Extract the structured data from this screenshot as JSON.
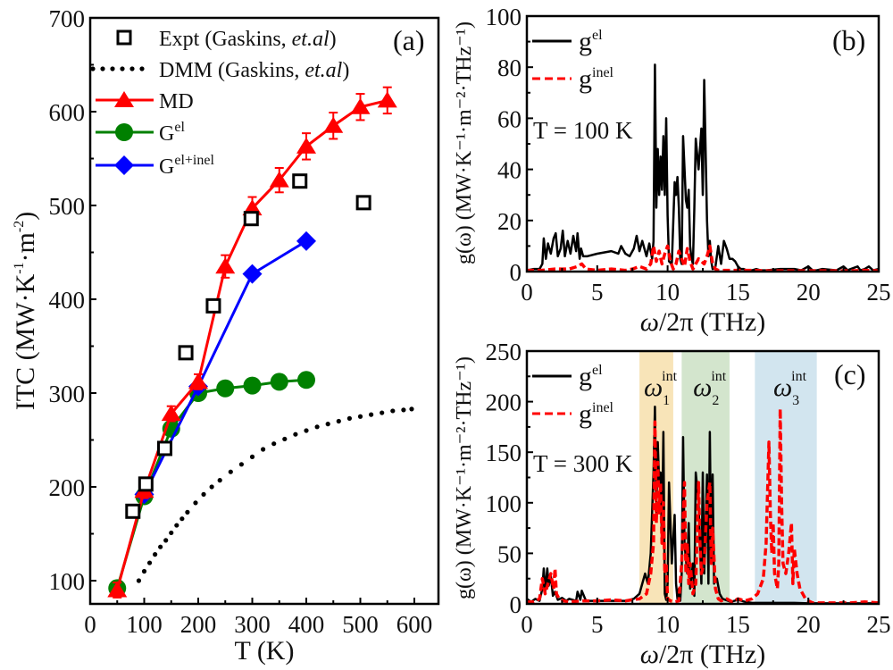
{
  "chart_data": [
    {
      "id": "a",
      "type": "line",
      "panel_label": "(a)",
      "xlabel": "T (K)",
      "ylabel": "ITC (MW·K⁻¹·m⁻²)",
      "ylabel_parts": {
        "base": "ITC (MW·K",
        "sup1": "-1",
        "mid": "·m",
        "sup2": "-2",
        "end": ")"
      },
      "xlim": [
        0,
        650
      ],
      "ylim": [
        75,
        700
      ],
      "xticks": [
        0,
        100,
        200,
        300,
        400,
        500,
        600
      ],
      "yticks": [
        100,
        200,
        300,
        400,
        500,
        600,
        700
      ],
      "legend_position": "top-left",
      "series": [
        {
          "name": "Expt (Gaskins, et.al)",
          "label_base": "Expt (Gaskins, ",
          "label_italic": "et.al",
          "label_end": ")",
          "style": "open-square",
          "color": "#000000",
          "x": [
            79,
            103,
            138,
            177,
            228,
            298,
            388,
            506
          ],
          "y": [
            174,
            203,
            241,
            343,
            393,
            486,
            526,
            503
          ]
        },
        {
          "name": "DMM (Gaskins, et.al)",
          "label_base": "DMM (Gaskins, ",
          "label_italic": "et.al",
          "label_end": ")",
          "style": "dotted",
          "color": "#000000",
          "x": [
            90,
            100,
            110,
            120,
            130,
            140,
            150,
            160,
            170,
            180,
            195,
            210,
            225,
            240,
            260,
            280,
            300,
            320,
            340,
            360,
            380,
            400,
            420,
            440,
            460,
            480,
            500,
            520,
            540,
            560,
            580,
            595
          ],
          "y": [
            100,
            110,
            119,
            128,
            136,
            143,
            151,
            159,
            166,
            173,
            183,
            192,
            200,
            207,
            216,
            224,
            232,
            240,
            246,
            251,
            256,
            260,
            264,
            267,
            270,
            273,
            275,
            277,
            279,
            281,
            282,
            283
          ]
        },
        {
          "name": "MD",
          "style": "triangle-line",
          "color": "#ff0000",
          "x": [
            50,
            100,
            150,
            200,
            250,
            300,
            350,
            400,
            450,
            500,
            550
          ],
          "y": [
            90,
            196,
            278,
            312,
            435,
            497,
            527,
            563,
            585,
            605,
            612
          ],
          "err": [
            8,
            8,
            8,
            8,
            12,
            12,
            13,
            14,
            14,
            14,
            14
          ]
        },
        {
          "name": "Gel",
          "label_base": "G",
          "label_sup": "el",
          "style": "circle-line",
          "color": "#008000",
          "x": [
            50,
            100,
            150,
            200,
            250,
            300,
            350,
            400
          ],
          "y": [
            92,
            190,
            262,
            300,
            305,
            308,
            312,
            314
          ]
        },
        {
          "name": "Gel+inel",
          "label_base": "G",
          "label_sup": "el+inel",
          "style": "diamond-line",
          "color": "#0000ff",
          "x": [
            100,
            200,
            300,
            400
          ],
          "y": [
            192,
            307,
            427,
            462
          ]
        }
      ]
    },
    {
      "id": "b",
      "type": "line",
      "panel_label": "(b)",
      "annotation": "T = 100 K",
      "xlabel": "ω/2π (THz)",
      "xlabel_parts": {
        "italic": "ω",
        "rest": "/2π (THz)"
      },
      "ylabel": "g(ω) (MW·K⁻¹·m⁻²·THz⁻¹)",
      "xlim": [
        0,
        25
      ],
      "ylim": [
        0,
        100
      ],
      "xticks": [
        0,
        5,
        10,
        15,
        20,
        25
      ],
      "yticks": [
        0,
        20,
        40,
        60,
        80,
        100
      ],
      "legend_position": "top-left",
      "series": [
        {
          "name": "gel",
          "label_base": "g",
          "label_sup": "el",
          "style": "solid",
          "color": "#000000",
          "x": [
            0,
            0.5,
            0.9,
            1.1,
            1.2,
            1.35,
            1.5,
            1.7,
            1.9,
            2.05,
            2.2,
            2.4,
            2.55,
            2.7,
            2.9,
            3.1,
            3.3,
            3.5,
            3.6,
            3.75,
            3.85,
            4.0,
            4.3,
            5,
            6,
            6.5,
            6.7,
            7,
            7.3,
            7.6,
            7.8,
            8.0,
            8.2,
            8.5,
            8.7,
            8.9,
            9.0,
            9.1,
            9.2,
            9.3,
            9.4,
            9.5,
            9.6,
            9.7,
            9.8,
            9.9,
            10.0,
            10.1,
            10.3,
            10.5,
            10.6,
            10.7,
            10.8,
            10.9,
            11.0,
            11.1,
            11.3,
            11.4,
            11.5,
            11.6,
            11.7,
            11.8,
            11.9,
            12.0,
            12.2,
            12.4,
            12.5,
            12.6,
            12.8,
            12.9,
            13.0,
            13.1,
            13.2,
            13.4,
            13.6,
            13.8,
            14.0,
            14.2,
            14.4,
            14.6,
            14.8,
            15.0,
            15.2,
            15.4,
            15.6,
            16.0,
            16.3,
            16.6,
            17,
            18,
            19,
            19.5,
            20,
            20.3,
            20.6,
            21,
            22,
            22.5,
            22.8,
            23,
            23.5,
            23.7,
            24,
            24.3,
            24.6,
            25
          ],
          "y": [
            0.5,
            1,
            1,
            3,
            13,
            5,
            11,
            7,
            13,
            15,
            6,
            9,
            16,
            6,
            12,
            7,
            14,
            8,
            15,
            5,
            9,
            6,
            6,
            7,
            8,
            7,
            10,
            7,
            6,
            9,
            14,
            8,
            12,
            6,
            11,
            5,
            12,
            81,
            25,
            48,
            30,
            45,
            32,
            53,
            30,
            60,
            22,
            4,
            3,
            35,
            30,
            37,
            25,
            5,
            3,
            53,
            28,
            25,
            32,
            10,
            5,
            3,
            25,
            52,
            40,
            56,
            30,
            75,
            20,
            6,
            12,
            4,
            1,
            2,
            10,
            3,
            12,
            9,
            5,
            5,
            4,
            2,
            1,
            1,
            0.5,
            0.5,
            1,
            0.5,
            0.5,
            1,
            1,
            0.5,
            2,
            0.5,
            0.5,
            1,
            0.5,
            2,
            0.5,
            1,
            2,
            0.5,
            1,
            2,
            0.5,
            1
          ]
        },
        {
          "name": "ginel",
          "label_base": "g",
          "label_sup": "inel",
          "style": "dashed",
          "color": "#ff0000",
          "x": [
            0,
            1,
            2,
            3,
            3.6,
            3.9,
            4.2,
            5,
            6,
            7,
            7.5,
            8,
            8.5,
            8.8,
            9.0,
            9.2,
            9.4,
            9.6,
            9.8,
            10.0,
            10.2,
            10.4,
            10.6,
            10.8,
            11.0,
            11.2,
            11.4,
            11.6,
            11.8,
            12.0,
            12.2,
            12.4,
            12.6,
            12.8,
            13.0,
            13.2,
            13.4,
            13.6,
            14,
            15,
            16,
            17,
            18,
            19,
            20,
            21,
            22,
            23,
            24,
            25
          ],
          "y": [
            0.5,
            0.5,
            1,
            1,
            2,
            3,
            1,
            0.5,
            1,
            0.5,
            1,
            2,
            1,
            3,
            10,
            4,
            8,
            3,
            7,
            10,
            4,
            1,
            3,
            8,
            5,
            2,
            9,
            4,
            1,
            3,
            5,
            4,
            3,
            6,
            10,
            3,
            1,
            0.5,
            0.5,
            0.5,
            0.5,
            0.3,
            0.3,
            0.3,
            0.3,
            0.3,
            0.3,
            0.3,
            0.5,
            0.3
          ]
        }
      ]
    },
    {
      "id": "c",
      "type": "line",
      "panel_label": "(c)",
      "annotation": "T = 300 K",
      "xlabel": "ω/2π (THz)",
      "xlabel_parts": {
        "italic": "ω",
        "rest": "/2π (THz)"
      },
      "ylabel": "g(ω) (MW·K⁻¹·m⁻²·THz⁻¹)",
      "xlim": [
        0,
        25
      ],
      "ylim": [
        0,
        250
      ],
      "xticks": [
        0,
        5,
        10,
        15,
        20,
        25
      ],
      "yticks": [
        0,
        50,
        100,
        150,
        200,
        250
      ],
      "legend_position": "top-left",
      "bands": [
        {
          "label": "ω1int",
          "sub": "1",
          "sup": "int",
          "from": 8.0,
          "to": 10.4,
          "color": "#f8e4b8"
        },
        {
          "label": "ω2int",
          "sub": "2",
          "sup": "int",
          "from": 11.0,
          "to": 14.4,
          "color": "#d3e5cd"
        },
        {
          "label": "ω3int",
          "sub": "3",
          "sup": "int",
          "from": 16.2,
          "to": 20.6,
          "color": "#d2e5ef"
        }
      ],
      "series": [
        {
          "name": "gel",
          "label_base": "g",
          "label_sup": "el",
          "style": "solid",
          "color": "#000000",
          "x": [
            0,
            0.3,
            0.6,
            0.9,
            1.1,
            1.2,
            1.3,
            1.45,
            1.55,
            1.7,
            1.85,
            2.0,
            2.2,
            2.5,
            2.8,
            3.0,
            3.5,
            3.6,
            3.8,
            3.9,
            4.2,
            5,
            6,
            7,
            7.6,
            8.0,
            8.4,
            8.6,
            8.8,
            9.0,
            9.1,
            9.2,
            9.3,
            9.4,
            9.5,
            9.6,
            9.7,
            9.8,
            9.9,
            10.0,
            10.1,
            10.3,
            10.5,
            10.6,
            10.7,
            10.8,
            10.9,
            11.0,
            11.1,
            11.2,
            11.4,
            11.5,
            11.6,
            11.8,
            11.9,
            12.0,
            12.2,
            12.4,
            12.5,
            12.6,
            12.8,
            12.9,
            13.0,
            13.1,
            13.2,
            13.3,
            13.5,
            13.7,
            13.9,
            14.1,
            14.5,
            15,
            15.5,
            16,
            17,
            18,
            19,
            20,
            21,
            22,
            23,
            24,
            25
          ],
          "y": [
            5,
            2,
            5,
            3,
            15,
            35,
            12,
            35,
            18,
            28,
            8,
            12,
            4,
            6,
            3,
            5,
            3,
            12,
            4,
            13,
            3,
            3,
            3,
            3,
            5,
            10,
            30,
            20,
            50,
            130,
            195,
            90,
            160,
            120,
            130,
            60,
            170,
            10,
            4,
            20,
            120,
            40,
            88,
            20,
            5,
            15,
            3,
            30,
            165,
            60,
            30,
            80,
            15,
            40,
            8,
            130,
            100,
            20,
            130,
            30,
            128,
            20,
            170,
            40,
            128,
            20,
            25,
            10,
            5,
            4,
            2,
            4,
            2,
            1,
            1,
            1,
            1,
            0.5,
            0.5,
            0.5,
            0.5,
            0.5,
            0.5
          ]
        },
        {
          "name": "ginel",
          "label_base": "g",
          "label_sup": "inel",
          "style": "dashed",
          "color": "#ff0000",
          "x": [
            0,
            0.5,
            0.9,
            1.1,
            1.3,
            1.5,
            1.7,
            1.9,
            2.0,
            2.1,
            2.3,
            2.6,
            3,
            4,
            5,
            6,
            7,
            8,
            8.5,
            8.8,
            9.0,
            9.1,
            9.2,
            9.3,
            9.4,
            9.5,
            9.6,
            9.7,
            9.8,
            9.9,
            10.0,
            10.2,
            10.5,
            10.8,
            11.0,
            11.2,
            11.3,
            11.4,
            11.5,
            11.6,
            11.8,
            12.0,
            12.2,
            12.3,
            12.4,
            12.6,
            12.8,
            13.0,
            13.1,
            13.2,
            13.4,
            13.6,
            13.8,
            14.2,
            14.6,
            15,
            15.5,
            16.0,
            16.4,
            16.8,
            17.0,
            17.2,
            17.3,
            17.4,
            17.5,
            17.6,
            17.8,
            17.9,
            18.0,
            18.1,
            18.2,
            18.4,
            18.6,
            18.8,
            18.9,
            19.0,
            19.2,
            19.4,
            19.6,
            19.8,
            20.0,
            20.3,
            20.6,
            21,
            22,
            23,
            24,
            25
          ],
          "y": [
            2,
            2,
            5,
            25,
            10,
            20,
            30,
            15,
            35,
            10,
            5,
            3,
            2,
            3,
            3,
            4,
            3,
            5,
            10,
            30,
            60,
            180,
            80,
            140,
            90,
            120,
            60,
            100,
            30,
            40,
            5,
            3,
            2,
            3,
            40,
            120,
            30,
            60,
            20,
            40,
            10,
            20,
            120,
            60,
            30,
            40,
            100,
            120,
            40,
            75,
            15,
            5,
            3,
            5,
            2,
            5,
            3,
            5,
            10,
            25,
            60,
            160,
            90,
            50,
            80,
            30,
            15,
            40,
            193,
            100,
            40,
            30,
            50,
            80,
            20,
            55,
            30,
            15,
            10,
            5,
            3,
            1,
            1,
            1,
            1,
            1,
            2,
            1
          ]
        }
      ]
    }
  ]
}
